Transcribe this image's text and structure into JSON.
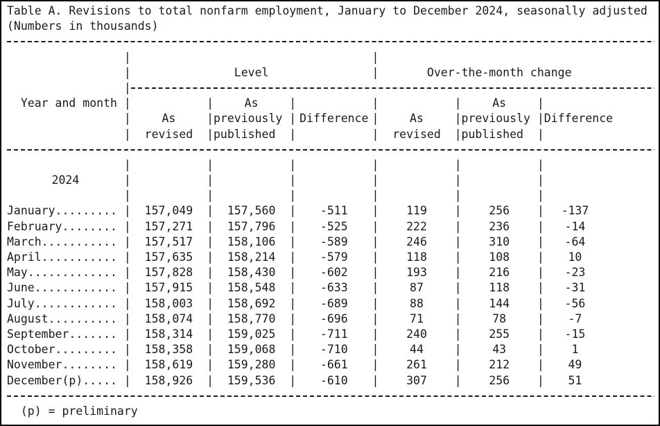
{
  "chars": {
    "pipe": "|"
  },
  "title": {
    "line1": "Table A. Revisions to total nonfarm employment, January to December 2024, seasonally adjusted",
    "line2": "(Numbers in thousands)"
  },
  "header": {
    "year_month": "Year and month",
    "level_group": "Level",
    "otm_group": "Over-the-month change",
    "sub_top": [
      "",
      "As",
      "",
      "",
      "As",
      ""
    ],
    "sub_mid": [
      "As",
      "previously",
      "Difference",
      "As",
      "previously",
      "Difference"
    ],
    "sub_bot": [
      "revised",
      "published",
      "",
      "revised",
      "published",
      ""
    ]
  },
  "year_label": "2024",
  "rows": [
    {
      "label": "January.........",
      "level_revised": "157,049",
      "level_published": "157,560",
      "level_difference": "-511",
      "otm_revised": "119",
      "otm_published": "256",
      "otm_difference": "-137"
    },
    {
      "label": "February........",
      "level_revised": "157,271",
      "level_published": "157,796",
      "level_difference": "-525",
      "otm_revised": "222",
      "otm_published": "236",
      "otm_difference": "-14"
    },
    {
      "label": "March...........",
      "level_revised": "157,517",
      "level_published": "158,106",
      "level_difference": "-589",
      "otm_revised": "246",
      "otm_published": "310",
      "otm_difference": "-64"
    },
    {
      "label": "April...........",
      "level_revised": "157,635",
      "level_published": "158,214",
      "level_difference": "-579",
      "otm_revised": "118",
      "otm_published": "108",
      "otm_difference": "10"
    },
    {
      "label": "May.............",
      "level_revised": "157,828",
      "level_published": "158,430",
      "level_difference": "-602",
      "otm_revised": "193",
      "otm_published": "216",
      "otm_difference": "-23"
    },
    {
      "label": "June............",
      "level_revised": "157,915",
      "level_published": "158,548",
      "level_difference": "-633",
      "otm_revised": "87",
      "otm_published": "118",
      "otm_difference": "-31"
    },
    {
      "label": "July............",
      "level_revised": "158,003",
      "level_published": "158,692",
      "level_difference": "-689",
      "otm_revised": "88",
      "otm_published": "144",
      "otm_difference": "-56"
    },
    {
      "label": "August..........",
      "level_revised": "158,074",
      "level_published": "158,770",
      "level_difference": "-696",
      "otm_revised": "71",
      "otm_published": "78",
      "otm_difference": "-7"
    },
    {
      "label": "September.......",
      "level_revised": "158,314",
      "level_published": "159,025",
      "level_difference": "-711",
      "otm_revised": "240",
      "otm_published": "255",
      "otm_difference": "-15"
    },
    {
      "label": "October.........",
      "level_revised": "158,358",
      "level_published": "159,068",
      "level_difference": "-710",
      "otm_revised": "44",
      "otm_published": "43",
      "otm_difference": "1"
    },
    {
      "label": "November........",
      "level_revised": "158,619",
      "level_published": "159,280",
      "level_difference": "-661",
      "otm_revised": "261",
      "otm_published": "212",
      "otm_difference": "49"
    },
    {
      "label": "December(p).....",
      "level_revised": "158,926",
      "level_published": "159,536",
      "level_difference": "-610",
      "otm_revised": "307",
      "otm_published": "256",
      "otm_difference": "51"
    }
  ],
  "footer": {
    "note": "(p) = preliminary"
  }
}
